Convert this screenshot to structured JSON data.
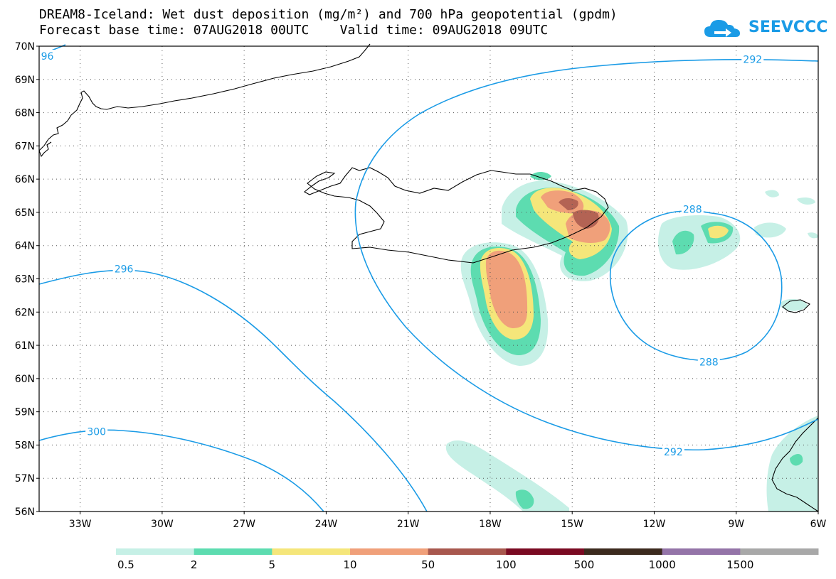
{
  "header": {
    "title_line1": "DREAM8-Iceland: Wet dust deposition (mg/m²) and 700 hPa geopotential (gpdm)",
    "title_line2": "Forecast base time: 07AUG2018 00UTC    Valid time: 09AUG2018 09UTC"
  },
  "logo": {
    "text": "SEEVCCC",
    "icon": "cloud-arrow-icon",
    "color": "#1a9be6"
  },
  "map": {
    "projection": "lat-lon",
    "lon_range": [
      -34.5,
      -6
    ],
    "lat_range": [
      56,
      70
    ],
    "grid": "dotted",
    "lat_ticks": [
      {
        "value": 56,
        "label": "56N"
      },
      {
        "value": 57,
        "label": "57N"
      },
      {
        "value": 58,
        "label": "58N"
      },
      {
        "value": 59,
        "label": "59N"
      },
      {
        "value": 60,
        "label": "60N"
      },
      {
        "value": 61,
        "label": "61N"
      },
      {
        "value": 62,
        "label": "62N"
      },
      {
        "value": 63,
        "label": "63N"
      },
      {
        "value": 64,
        "label": "64N"
      },
      {
        "value": 65,
        "label": "65N"
      },
      {
        "value": 66,
        "label": "66N"
      },
      {
        "value": 67,
        "label": "67N"
      },
      {
        "value": 68,
        "label": "68N"
      },
      {
        "value": 69,
        "label": "69N"
      },
      {
        "value": 70,
        "label": "70N"
      }
    ],
    "lon_ticks": [
      {
        "value": -33,
        "label": "33W"
      },
      {
        "value": -30,
        "label": "30W"
      },
      {
        "value": -27,
        "label": "27W"
      },
      {
        "value": -24,
        "label": "24W"
      },
      {
        "value": -21,
        "label": "21W"
      },
      {
        "value": -18,
        "label": "18W"
      },
      {
        "value": -15,
        "label": "15W"
      },
      {
        "value": -12,
        "label": "12W"
      },
      {
        "value": -9,
        "label": "9W"
      },
      {
        "value": -6,
        "label": "6W"
      }
    ],
    "contour_color": "#1a9be6",
    "contour_labels": [
      {
        "text": "96",
        "lon": -34.2,
        "lat": 69.7
      },
      {
        "text": "292",
        "lon": -8.4,
        "lat": 69.6
      },
      {
        "text": "296",
        "lon": -31.4,
        "lat": 63.3
      },
      {
        "text": "288",
        "lon": -10.6,
        "lat": 65.1
      },
      {
        "text": "288",
        "lon": -10.0,
        "lat": 60.5
      },
      {
        "text": "300",
        "lon": -32.4,
        "lat": 58.4
      },
      {
        "text": "292",
        "lon": -11.3,
        "lat": 57.8
      }
    ]
  },
  "legend": {
    "colors": [
      "#c6f0e6",
      "#5ddcb0",
      "#f5e67a",
      "#f0a07a",
      "#a8584e",
      "#7a0a22",
      "#3c2a1e",
      "#9474a8",
      "#a8a8a8"
    ],
    "labels": [
      "0.5",
      "2",
      "5",
      "10",
      "50",
      "100",
      "500",
      "1000",
      "1500"
    ]
  }
}
